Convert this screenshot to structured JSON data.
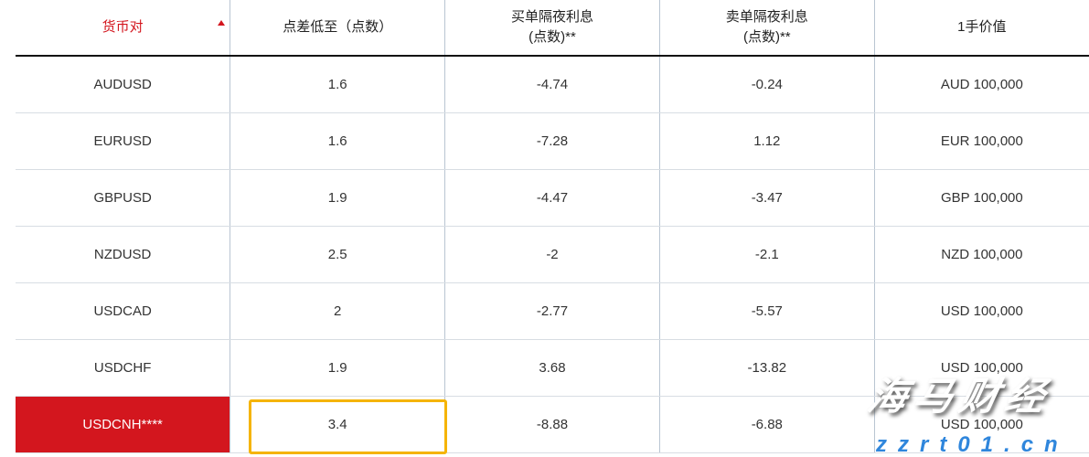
{
  "table": {
    "headers": [
      "货币对",
      "点差低至（点数）",
      "买单隔夜利息\n(点数)**",
      "卖单隔夜利息\n(点数)**",
      "1手价值"
    ],
    "sort": {
      "column": 0,
      "direction": "ascending"
    },
    "rows": [
      [
        "AUDUSD",
        "1.6",
        "-4.74",
        "-0.24",
        "AUD 100,000"
      ],
      [
        "EURUSD",
        "1.6",
        "-7.28",
        "1.12",
        "EUR 100,000"
      ],
      [
        "GBPUSD",
        "1.9",
        "-4.47",
        "-3.47",
        "GBP 100,000"
      ],
      [
        "NZDUSD",
        "2.5",
        "-2",
        "-2.1",
        "NZD 100,000"
      ],
      [
        "USDCAD",
        "2",
        "-2.77",
        "-5.57",
        "USD 100,000"
      ],
      [
        "USDCHF",
        "1.9",
        "3.68",
        "-13.82",
        "USD 100,000"
      ],
      [
        "USDCNH****",
        "3.4",
        "-8.88",
        "-6.88",
        "USD 100,000"
      ]
    ],
    "highlighted_row": 6
  },
  "colors": {
    "accent_red": "#d3161e",
    "highlight_box": "#f5b400"
  },
  "watermark": {
    "title": "海马财经",
    "url": "zzrt01.cn"
  }
}
